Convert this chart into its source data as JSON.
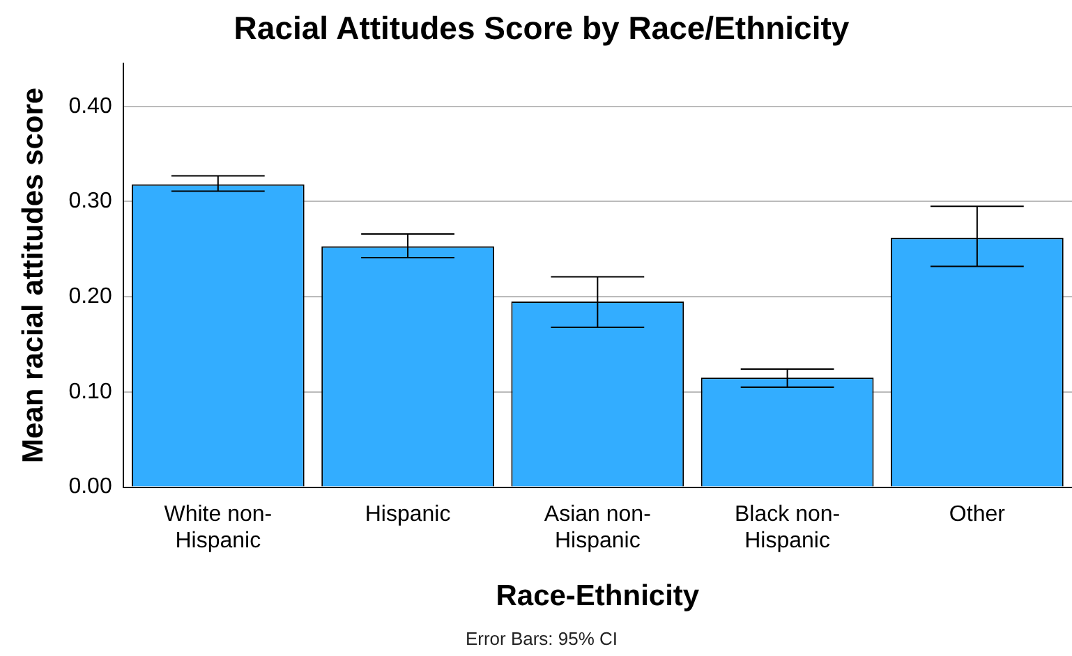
{
  "chart_data": {
    "type": "bar",
    "title": "Racial Attitudes Score by Race/Ethnicity",
    "xlabel": "Race-Ethnicity",
    "ylabel": "Mean racial attitudes score",
    "categories": [
      "White non-Hispanic",
      "Hispanic",
      "Asian non-Hispanic",
      "Black non-Hispanic",
      "Other"
    ],
    "values": [
      0.318,
      0.253,
      0.195,
      0.115,
      0.262
    ],
    "errors": [
      [
        0.311,
        0.327
      ],
      [
        0.241,
        0.266
      ],
      [
        0.168,
        0.221
      ],
      [
        0.105,
        0.124
      ],
      [
        0.232,
        0.295
      ]
    ],
    "color": "#33adff",
    "ylim": [
      0,
      0.445
    ],
    "yticks": [
      {
        "value": 0,
        "label": "0.00"
      },
      {
        "value": 0.1,
        "label": "0.10"
      },
      {
        "value": 0.2,
        "label": "0.20"
      },
      {
        "value": 0.3,
        "label": "0.30"
      },
      {
        "value": 0.4,
        "label": "0.40"
      }
    ],
    "grid": "y",
    "annotations": [
      "Error Bars: 95% CI"
    ]
  }
}
